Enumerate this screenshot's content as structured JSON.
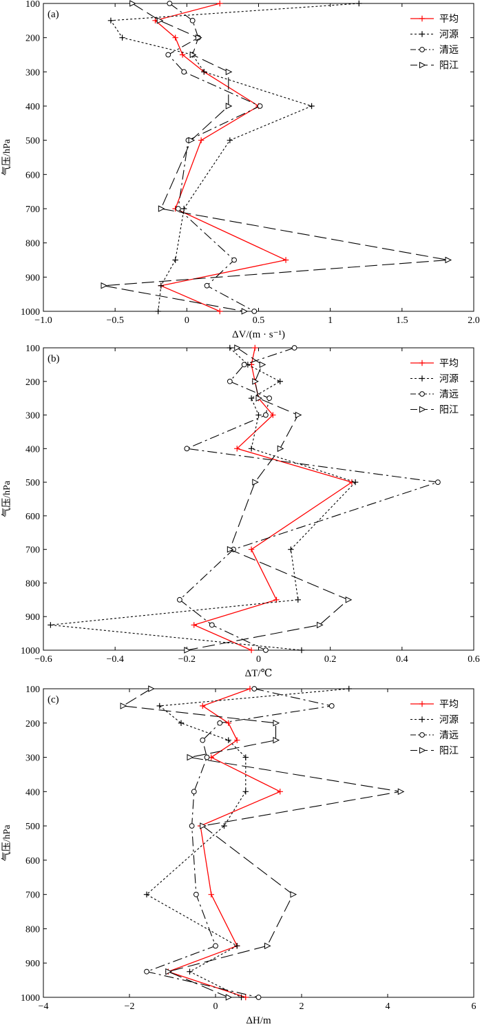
{
  "chart_data": [
    {
      "type": "line",
      "panel_label": "(a)",
      "xlabel": "ΔV/(m · s⁻¹)",
      "ylabel": "气压/hPa",
      "xlim": [
        -1.0,
        2.0
      ],
      "ylim": [
        100,
        1000
      ],
      "y_inverted": true,
      "xticks": [
        -1.0,
        -0.5,
        0,
        0.5,
        1,
        1.5,
        2.0
      ],
      "xtick_labels": [
        "−1.0",
        "−0.5",
        "0",
        "0.5",
        "1",
        "1.5",
        "2.0"
      ],
      "yticks": [
        100,
        200,
        300,
        400,
        500,
        600,
        700,
        800,
        900,
        1000
      ],
      "ytick_labels": [
        "100",
        "200",
        "300",
        "400",
        "500",
        "600",
        "700",
        "800",
        "900",
        "1000"
      ],
      "legend_position": "top-right",
      "series": [
        {
          "name": "平均",
          "style": "solid",
          "marker": "plus",
          "color": "#ff0000",
          "x": [
            0.23,
            -0.22,
            -0.08,
            -0.03,
            0.12,
            0.5,
            0.1,
            -0.08,
            0.69,
            -0.18,
            0.23
          ],
          "y": [
            100,
            150,
            200,
            250,
            300,
            400,
            500,
            700,
            850,
            925,
            1000
          ]
        },
        {
          "name": "河源",
          "style": "dotted",
          "marker": "plus",
          "color": "#000000",
          "x": [
            1.2,
            -0.53,
            -0.45,
            0.04,
            0.12,
            0.87,
            0.3,
            -0.02,
            -0.08,
            -0.18,
            -0.2
          ],
          "y": [
            100,
            150,
            200,
            250,
            300,
            400,
            500,
            700,
            850,
            925,
            1000
          ]
        },
        {
          "name": "清远",
          "style": "dashdot",
          "marker": "circle",
          "color": "#000000",
          "x": [
            -0.12,
            0.04,
            0.08,
            -0.13,
            -0.02,
            0.51,
            0.01,
            -0.06,
            0.33,
            0.14,
            0.47
          ],
          "y": [
            100,
            150,
            200,
            250,
            300,
            400,
            500,
            700,
            850,
            925,
            1000
          ]
        },
        {
          "name": "阳江",
          "style": "longdash",
          "marker": "triangle",
          "color": "#000000",
          "x": [
            -0.38,
            -0.19,
            0.08,
            0.04,
            0.29,
            0.29,
            0.03,
            -0.18,
            1.82,
            -0.58,
            0.4
          ],
          "y": [
            100,
            150,
            200,
            250,
            300,
            400,
            500,
            700,
            850,
            925,
            1000
          ]
        }
      ]
    },
    {
      "type": "line",
      "panel_label": "(b)",
      "xlabel": "ΔT/℃",
      "ylabel": "气压/hPa",
      "xlim": [
        -0.6,
        0.6
      ],
      "ylim": [
        100,
        1000
      ],
      "y_inverted": true,
      "xticks": [
        -0.6,
        -0.4,
        -0.2,
        0,
        0.2,
        0.4,
        0.6
      ],
      "xtick_labels": [
        "−0.6",
        "−0.4",
        "−0.2",
        "0",
        "0.2",
        "0.4",
        "0.6"
      ],
      "yticks": [
        100,
        200,
        300,
        400,
        500,
        600,
        700,
        800,
        900,
        1000
      ],
      "ytick_labels": [
        "100",
        "200",
        "300",
        "400",
        "500",
        "600",
        "700",
        "800",
        "900",
        "1000"
      ],
      "legend_position": "top-right",
      "series": [
        {
          "name": "平均",
          "style": "solid",
          "marker": "plus",
          "color": "#ff0000",
          "x": [
            -0.01,
            -0.02,
            -0.01,
            0.0,
            0.04,
            -0.06,
            0.26,
            -0.02,
            0.05,
            -0.18,
            -0.02
          ],
          "y": [
            100,
            150,
            200,
            250,
            300,
            400,
            500,
            700,
            850,
            925,
            1000
          ]
        },
        {
          "name": "河源",
          "style": "dotted",
          "marker": "plus",
          "color": "#000000",
          "x": [
            -0.08,
            -0.03,
            0.06,
            -0.02,
            0.0,
            -0.02,
            0.27,
            0.09,
            0.11,
            -0.58,
            0.12
          ],
          "y": [
            100,
            150,
            200,
            250,
            300,
            400,
            500,
            700,
            850,
            925,
            1000
          ]
        },
        {
          "name": "清远",
          "style": "dashdot",
          "marker": "circle",
          "color": "#000000",
          "x": [
            0.1,
            -0.04,
            -0.08,
            0.03,
            0.02,
            -0.2,
            0.5,
            -0.07,
            -0.22,
            -0.13,
            0.02
          ],
          "y": [
            100,
            150,
            200,
            250,
            300,
            400,
            500,
            700,
            850,
            925,
            1000
          ]
        },
        {
          "name": "阳江",
          "style": "longdash",
          "marker": "triangle",
          "color": "#000000",
          "x": [
            -0.06,
            0.01,
            -0.01,
            0.0,
            0.11,
            0.06,
            -0.01,
            -0.08,
            0.25,
            0.17,
            -0.2
          ],
          "y": [
            100,
            150,
            200,
            250,
            300,
            400,
            500,
            700,
            850,
            925,
            1000
          ]
        }
      ]
    },
    {
      "type": "line",
      "panel_label": "(c)",
      "xlabel": "ΔH/m",
      "ylabel": "气压/hPa",
      "xlim": [
        -4,
        6
      ],
      "ylim": [
        100,
        1000
      ],
      "y_inverted": true,
      "xticks": [
        -4,
        -2,
        0,
        2,
        4,
        6
      ],
      "xtick_labels": [
        "−4",
        "−2",
        "0",
        "2",
        "4",
        "6"
      ],
      "yticks": [
        100,
        200,
        300,
        400,
        500,
        600,
        700,
        800,
        900,
        1000
      ],
      "ytick_labels": [
        "100",
        "200",
        "300",
        "400",
        "500",
        "600",
        "700",
        "800",
        "900",
        "1000"
      ],
      "legend_position": "top-right",
      "series": [
        {
          "name": "平均",
          "style": "solid",
          "marker": "plus",
          "color": "#ff0000",
          "x": [
            0.8,
            -0.3,
            0.3,
            0.5,
            -0.1,
            1.5,
            -0.35,
            -0.1,
            0.5,
            -1.1,
            0.7
          ],
          "y": [
            100,
            150,
            200,
            250,
            300,
            400,
            500,
            700,
            850,
            925,
            1000
          ]
        },
        {
          "name": "河源",
          "style": "dotted",
          "marker": "plus",
          "color": "#000000",
          "x": [
            3.1,
            -1.3,
            -0.8,
            0.3,
            0.7,
            0.7,
            0.2,
            -1.6,
            0.5,
            -0.6,
            0.6
          ],
          "y": [
            100,
            150,
            200,
            250,
            300,
            400,
            500,
            700,
            850,
            925,
            1000
          ]
        },
        {
          "name": "清远",
          "style": "dashdot",
          "marker": "circle",
          "color": "#000000",
          "x": [
            0.9,
            2.7,
            0.1,
            -0.3,
            -0.2,
            -0.5,
            -0.55,
            -0.45,
            0.0,
            -1.6,
            1.0
          ],
          "y": [
            100,
            150,
            200,
            250,
            300,
            400,
            500,
            700,
            850,
            925,
            1000
          ]
        },
        {
          "name": "阳江",
          "style": "longdash",
          "marker": "triangle",
          "color": "#000000",
          "x": [
            -1.5,
            -2.15,
            1.4,
            1.4,
            -0.6,
            4.3,
            -0.3,
            1.8,
            1.2,
            -1.1,
            0.3
          ],
          "y": [
            100,
            150,
            200,
            250,
            300,
            400,
            500,
            700,
            850,
            925,
            1000
          ]
        }
      ]
    }
  ]
}
